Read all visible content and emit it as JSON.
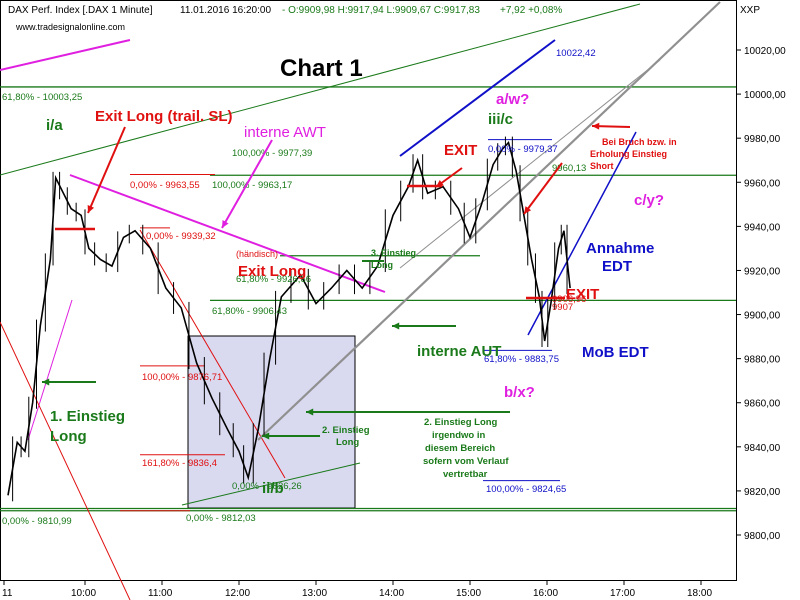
{
  "header": {
    "instrument": "DAX Perf. Index [.DAX  1 Minute]",
    "date_time": "11.01.2016 16:20:00",
    "ohlc": "- O:9909,98 H:9917,94 L:9909,67 C:9917,83",
    "change": "+7,92 +0,08%",
    "source": "www.tradesignalonline.com",
    "symbol": "XXP"
  },
  "title": "Chart 1",
  "colors": {
    "green": "#1a7a1a",
    "red": "#e01010",
    "blue": "#1010c8",
    "magenta": "#e020e0",
    "gray": "#909090",
    "candle": "#000000",
    "box_fill": "#cccceb"
  },
  "chart_data": {
    "type": "candlestick",
    "title": "Chart 1",
    "x_ticks": [
      "11",
      "10:00",
      "11:00",
      "12:00",
      "13:00",
      "14:00",
      "15:00",
      "16:00",
      "17:00",
      "18:00"
    ],
    "y_ticks": [
      "10020,00",
      "10000,00",
      "9980,00",
      "9960,00",
      "9940,00",
      "9920,00",
      "9900,00",
      "9880,00",
      "9860,00",
      "9840,00",
      "9820,00",
      "9800,00"
    ],
    "y_tick_values": [
      10020,
      10000,
      9980,
      9960,
      9940,
      9920,
      9900,
      9880,
      9860,
      9840,
      9820,
      9800
    ],
    "ylim": [
      9790,
      10040
    ],
    "x_range_hours": [
      9.0,
      18.6
    ],
    "price_path": [
      [
        9.0,
        9818
      ],
      [
        9.12,
        9842
      ],
      [
        9.22,
        9838
      ],
      [
        9.32,
        9860
      ],
      [
        9.42,
        9895
      ],
      [
        9.55,
        9925
      ],
      [
        9.62,
        9962
      ],
      [
        9.72,
        9955
      ],
      [
        9.82,
        9948
      ],
      [
        9.95,
        9945
      ],
      [
        10.05,
        9930
      ],
      [
        10.2,
        9925
      ],
      [
        10.35,
        9922
      ],
      [
        10.5,
        9935
      ],
      [
        10.65,
        9938
      ],
      [
        10.85,
        9930
      ],
      [
        11.05,
        9912
      ],
      [
        11.25,
        9903
      ],
      [
        11.45,
        9878
      ],
      [
        11.65,
        9862
      ],
      [
        11.85,
        9848
      ],
      [
        12.0,
        9838
      ],
      [
        12.12,
        9826
      ],
      [
        12.25,
        9848
      ],
      [
        12.4,
        9880
      ],
      [
        12.55,
        9908
      ],
      [
        12.8,
        9918
      ],
      [
        13.0,
        9905
      ],
      [
        13.2,
        9912
      ],
      [
        13.4,
        9920
      ],
      [
        13.6,
        9912
      ],
      [
        13.8,
        9922
      ],
      [
        14.0,
        9945
      ],
      [
        14.2,
        9958
      ],
      [
        14.32,
        9970
      ],
      [
        14.45,
        9955
      ],
      [
        14.65,
        9958
      ],
      [
        14.85,
        9948
      ],
      [
        15.0,
        9935
      ],
      [
        15.15,
        9950
      ],
      [
        15.3,
        9968
      ],
      [
        15.42,
        9975
      ],
      [
        15.5,
        9978
      ],
      [
        15.6,
        9965
      ],
      [
        15.7,
        9945
      ],
      [
        15.8,
        9925
      ],
      [
        15.9,
        9908
      ],
      [
        15.97,
        9888
      ],
      [
        16.05,
        9905
      ],
      [
        16.15,
        9930
      ],
      [
        16.22,
        9938
      ],
      [
        16.3,
        9912
      ]
    ],
    "horizontal_levels": [
      {
        "value": 10003.25,
        "label": "61,80% - 10003,25"
      },
      {
        "value": 9963.17,
        "label": "100,00% - 9963,17"
      },
      {
        "value": 9963.55,
        "label": "0,00% - 9963,55"
      },
      {
        "value": 9939.32,
        "label": "0,00% - 9939,32"
      },
      {
        "value": 9977.39,
        "label": "100,00% - 9977,39"
      },
      {
        "value": 9979.37,
        "label": "0,00% - 9979,37"
      },
      {
        "value": 9960.13,
        "label": "9960,13"
      },
      {
        "value": 9926.66,
        "label": "61,80% - 9926,66"
      },
      {
        "value": 9906.43,
        "label": "61,80% - 9906,43"
      },
      {
        "value": 9883.75,
        "label": "61,80% - 9883,75"
      },
      {
        "value": 9824.65,
        "label": "100,00% - 9824,65"
      },
      {
        "value": 9810.99,
        "label": "0,00% - 9810,99"
      },
      {
        "value": 9812.03,
        "label": "0,00% - 9812,03"
      },
      {
        "value": 9826.26,
        "label": "0,00% - 9826,26"
      },
      {
        "value": 9876.71,
        "label": "100,00% - 9876,71"
      },
      {
        "value": 9836.4,
        "label": "161,80% - 9836,4"
      },
      {
        "value": 10022.42,
        "label": "10022,42"
      },
      {
        "value": 9906.96,
        "label": "9906,96"
      },
      {
        "value": 9907.0,
        "label": "9907"
      }
    ],
    "annotations": [
      {
        "text": "i/a"
      },
      {
        "text": "Exit Long (trail. SL)"
      },
      {
        "text": "interne AWT"
      },
      {
        "text": "a/w?"
      },
      {
        "text": "iii/c"
      },
      {
        "text": "EXIT"
      },
      {
        "text": "Bei Bruch bzw. in Erholung Einstieg Short"
      },
      {
        "text": "c/y?"
      },
      {
        "text": "Annahme EDT"
      },
      {
        "text": "EXIT"
      },
      {
        "text": "MoB EDT"
      },
      {
        "text": "b/x?"
      },
      {
        "text": "interne AUT"
      },
      {
        "text": "(händisch)"
      },
      {
        "text": "Exit Long"
      },
      {
        "text": "3. Einstieg Long"
      },
      {
        "text": "1. Einstieg Long"
      },
      {
        "text": "2. Einstieg Long"
      },
      {
        "text": "2. Einstieg Long irgendwo in diesem Bereich sofern vom Verlauf vertretbar"
      },
      {
        "text": "ii/b"
      }
    ]
  }
}
